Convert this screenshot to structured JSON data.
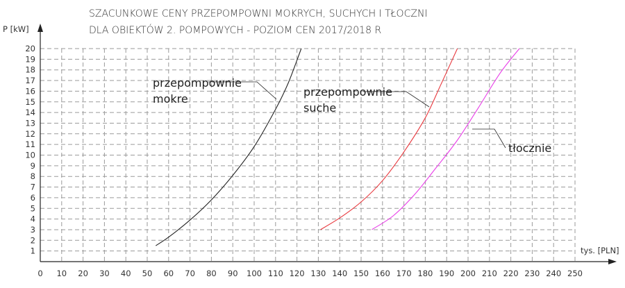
{
  "chart_data": {
    "type": "line",
    "title": "SZACUNKOWE CENY PRZEPOMPOWNI MOKRYCH, SUCHYCH I TŁOCZNI",
    "subtitle": "DLA OBIEKTÓW 2. POMPOWYCH - POZIOM CEN 2017/2018 R",
    "xlabel": "tys. [PLN]",
    "ylabel": "P [kW]",
    "xlim": [
      0,
      250
    ],
    "ylim": [
      0,
      20
    ],
    "x_ticks": [
      0,
      10,
      20,
      30,
      40,
      50,
      60,
      70,
      80,
      90,
      100,
      110,
      120,
      130,
      140,
      150,
      160,
      170,
      180,
      190,
      200,
      210,
      220,
      230,
      240,
      250
    ],
    "y_ticks": [
      1,
      2,
      3,
      4,
      5,
      6,
      7,
      8,
      9,
      10,
      11,
      12,
      13,
      14,
      15,
      16,
      17,
      18,
      19,
      20
    ],
    "grid": true,
    "series": [
      {
        "name_lines": [
          "przepompownie",
          "mokre"
        ],
        "color": "#222222",
        "points": [
          [
            54,
            1.5
          ],
          [
            60,
            2.3
          ],
          [
            70,
            3.9
          ],
          [
            80,
            5.8
          ],
          [
            90,
            8.1
          ],
          [
            100,
            10.8
          ],
          [
            110,
            14.3
          ],
          [
            116,
            16.8
          ],
          [
            122,
            20
          ]
        ]
      },
      {
        "name_lines": [
          "przepompownie",
          "suche"
        ],
        "color": "#e8383d",
        "points": [
          [
            131,
            3
          ],
          [
            140,
            4.1
          ],
          [
            150,
            5.6
          ],
          [
            160,
            7.6
          ],
          [
            170,
            10.3
          ],
          [
            180,
            13.5
          ],
          [
            187,
            16.5
          ],
          [
            195,
            20
          ]
        ]
      },
      {
        "name_lines": [
          "tłocznie"
        ],
        "color": "#e83ee8",
        "points": [
          [
            155,
            3
          ],
          [
            165,
            4.3
          ],
          [
            175,
            6.3
          ],
          [
            185,
            8.8
          ],
          [
            195,
            11.4
          ],
          [
            205,
            14.5
          ],
          [
            215,
            17.7
          ],
          [
            224,
            20
          ]
        ]
      }
    ]
  }
}
